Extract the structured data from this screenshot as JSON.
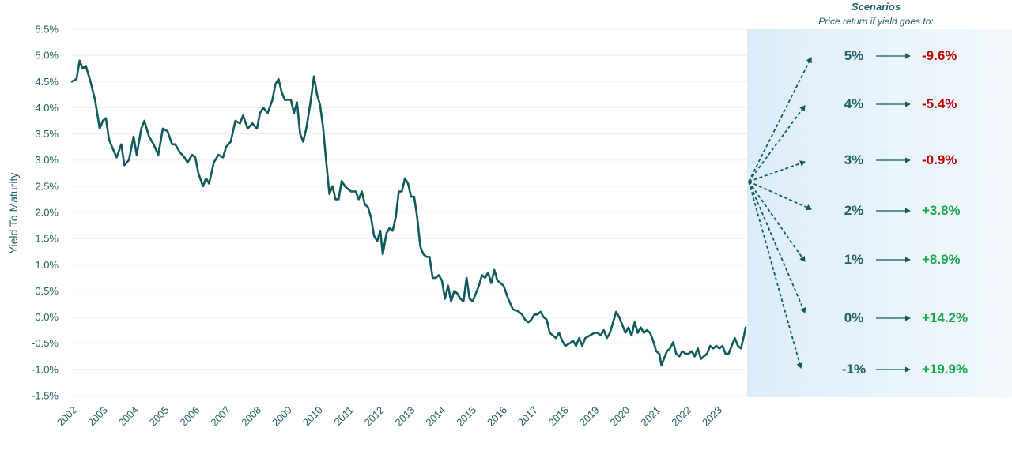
{
  "chart_data": {
    "type": "line",
    "title": "",
    "xlabel": "",
    "ylabel": "Yield To Maturity",
    "ylim": [
      -1.5,
      5.5
    ],
    "xlim": [
      2002,
      2023.9
    ],
    "y_ticks": [
      "5.5%",
      "5.0%",
      "4.5%",
      "4.0%",
      "3.5%",
      "3.0%",
      "2.5%",
      "2.0%",
      "1.5%",
      "1.0%",
      "0.5%",
      "0.0%",
      "-0.5%",
      "-1.0%",
      "-1.5%"
    ],
    "x_ticks": [
      "2002",
      "2003",
      "2004",
      "2005",
      "2006",
      "2007",
      "2008",
      "2009",
      "2010",
      "2011",
      "2012",
      "2013",
      "2014",
      "2015",
      "2016",
      "2017",
      "2018",
      "2019",
      "2020",
      "2021",
      "2022",
      "2023"
    ],
    "grid": true,
    "series": [
      {
        "color": "#0f5a5c",
        "points": [
          [
            2002.0,
            4.5
          ],
          [
            2002.15,
            4.55
          ],
          [
            2002.25,
            4.9
          ],
          [
            2002.35,
            4.75
          ],
          [
            2002.45,
            4.8
          ],
          [
            2002.6,
            4.5
          ],
          [
            2002.75,
            4.15
          ],
          [
            2002.9,
            3.6
          ],
          [
            2003.0,
            3.75
          ],
          [
            2003.1,
            3.8
          ],
          [
            2003.2,
            3.4
          ],
          [
            2003.3,
            3.25
          ],
          [
            2003.45,
            3.05
          ],
          [
            2003.6,
            3.3
          ],
          [
            2003.7,
            2.9
          ],
          [
            2003.85,
            3.0
          ],
          [
            2004.0,
            3.45
          ],
          [
            2004.1,
            3.1
          ],
          [
            2004.25,
            3.6
          ],
          [
            2004.35,
            3.75
          ],
          [
            2004.5,
            3.45
          ],
          [
            2004.65,
            3.3
          ],
          [
            2004.8,
            3.1
          ],
          [
            2004.95,
            3.6
          ],
          [
            2005.1,
            3.55
          ],
          [
            2005.25,
            3.3
          ],
          [
            2005.35,
            3.3
          ],
          [
            2005.5,
            3.15
          ],
          [
            2005.65,
            3.05
          ],
          [
            2005.75,
            2.95
          ],
          [
            2005.9,
            3.1
          ],
          [
            2006.0,
            3.05
          ],
          [
            2006.1,
            2.75
          ],
          [
            2006.25,
            2.5
          ],
          [
            2006.35,
            2.65
          ],
          [
            2006.45,
            2.55
          ],
          [
            2006.6,
            2.95
          ],
          [
            2006.75,
            3.1
          ],
          [
            2006.9,
            3.05
          ],
          [
            2007.0,
            3.25
          ],
          [
            2007.15,
            3.35
          ],
          [
            2007.3,
            3.75
          ],
          [
            2007.45,
            3.7
          ],
          [
            2007.55,
            3.85
          ],
          [
            2007.7,
            3.6
          ],
          [
            2007.85,
            3.7
          ],
          [
            2008.0,
            3.6
          ],
          [
            2008.1,
            3.9
          ],
          [
            2008.2,
            4.0
          ],
          [
            2008.35,
            3.9
          ],
          [
            2008.5,
            4.15
          ],
          [
            2008.6,
            4.45
          ],
          [
            2008.7,
            4.55
          ],
          [
            2008.8,
            4.3
          ],
          [
            2008.9,
            4.15
          ],
          [
            2009.0,
            4.15
          ],
          [
            2009.1,
            4.15
          ],
          [
            2009.2,
            3.9
          ],
          [
            2009.3,
            4.1
          ],
          [
            2009.4,
            3.5
          ],
          [
            2009.5,
            3.35
          ],
          [
            2009.6,
            3.6
          ],
          [
            2009.75,
            4.15
          ],
          [
            2009.85,
            4.6
          ],
          [
            2009.95,
            4.25
          ],
          [
            2010.05,
            4.05
          ],
          [
            2010.15,
            3.6
          ],
          [
            2010.25,
            2.95
          ],
          [
            2010.35,
            2.35
          ],
          [
            2010.45,
            2.5
          ],
          [
            2010.55,
            2.25
          ],
          [
            2010.65,
            2.25
          ],
          [
            2010.75,
            2.6
          ],
          [
            2010.85,
            2.5
          ],
          [
            2010.95,
            2.45
          ],
          [
            2011.05,
            2.4
          ],
          [
            2011.2,
            2.4
          ],
          [
            2011.3,
            2.25
          ],
          [
            2011.4,
            2.4
          ],
          [
            2011.5,
            2.15
          ],
          [
            2011.6,
            2.1
          ],
          [
            2011.7,
            1.9
          ],
          [
            2011.8,
            1.55
          ],
          [
            2011.9,
            1.45
          ],
          [
            2012.0,
            1.65
          ],
          [
            2012.08,
            1.2
          ],
          [
            2012.2,
            1.6
          ],
          [
            2012.3,
            1.7
          ],
          [
            2012.4,
            1.65
          ],
          [
            2012.5,
            1.9
          ],
          [
            2012.6,
            2.4
          ],
          [
            2012.7,
            2.4
          ],
          [
            2012.8,
            2.65
          ],
          [
            2012.9,
            2.55
          ],
          [
            2013.0,
            2.3
          ],
          [
            2013.1,
            2.3
          ],
          [
            2013.2,
            1.9
          ],
          [
            2013.3,
            1.35
          ],
          [
            2013.4,
            1.2
          ],
          [
            2013.5,
            1.15
          ],
          [
            2013.6,
            1.15
          ],
          [
            2013.7,
            0.75
          ],
          [
            2013.8,
            0.75
          ],
          [
            2013.9,
            0.8
          ],
          [
            2014.0,
            0.7
          ],
          [
            2014.1,
            0.35
          ],
          [
            2014.2,
            0.6
          ],
          [
            2014.3,
            0.3
          ],
          [
            2014.4,
            0.5
          ],
          [
            2014.5,
            0.45
          ],
          [
            2014.6,
            0.35
          ],
          [
            2014.7,
            0.3
          ],
          [
            2014.8,
            0.75
          ],
          [
            2014.9,
            0.35
          ],
          [
            2015.0,
            0.3
          ],
          [
            2015.1,
            0.45
          ],
          [
            2015.2,
            0.6
          ],
          [
            2015.3,
            0.8
          ],
          [
            2015.4,
            0.75
          ],
          [
            2015.5,
            0.85
          ],
          [
            2015.6,
            0.65
          ],
          [
            2015.7,
            0.9
          ],
          [
            2015.8,
            0.7
          ],
          [
            2015.9,
            0.65
          ],
          [
            2016.0,
            0.6
          ],
          [
            2016.15,
            0.35
          ],
          [
            2016.3,
            0.15
          ],
          [
            2016.45,
            0.12
          ],
          [
            2016.6,
            0.05
          ],
          [
            2016.7,
            -0.05
          ],
          [
            2016.8,
            -0.1
          ],
          [
            2016.9,
            -0.05
          ],
          [
            2017.0,
            0.05
          ],
          [
            2017.1,
            0.05
          ],
          [
            2017.2,
            0.1
          ],
          [
            2017.3,
            0.0
          ],
          [
            2017.4,
            -0.05
          ],
          [
            2017.5,
            -0.3
          ],
          [
            2017.6,
            -0.35
          ],
          [
            2017.7,
            -0.4
          ],
          [
            2017.8,
            -0.3
          ],
          [
            2017.9,
            -0.45
          ],
          [
            2018.0,
            -0.55
          ],
          [
            2018.15,
            -0.5
          ],
          [
            2018.25,
            -0.45
          ],
          [
            2018.35,
            -0.55
          ],
          [
            2018.45,
            -0.4
          ],
          [
            2018.55,
            -0.55
          ],
          [
            2018.65,
            -0.4
          ],
          [
            2018.8,
            -0.35
          ],
          [
            2018.95,
            -0.3
          ],
          [
            2019.05,
            -0.3
          ],
          [
            2019.15,
            -0.35
          ],
          [
            2019.25,
            -0.25
          ],
          [
            2019.35,
            -0.4
          ],
          [
            2019.45,
            -0.3
          ],
          [
            2019.55,
            -0.1
          ],
          [
            2019.65,
            0.1
          ],
          [
            2019.75,
            0.0
          ],
          [
            2019.85,
            -0.15
          ],
          [
            2019.95,
            -0.3
          ],
          [
            2020.05,
            -0.2
          ],
          [
            2020.15,
            -0.35
          ],
          [
            2020.25,
            -0.1
          ],
          [
            2020.35,
            -0.3
          ],
          [
            2020.45,
            -0.2
          ],
          [
            2020.55,
            -0.3
          ],
          [
            2020.65,
            -0.25
          ],
          [
            2020.75,
            -0.3
          ],
          [
            2020.85,
            -0.45
          ],
          [
            2020.95,
            -0.65
          ],
          [
            2021.05,
            -0.7
          ],
          [
            2021.12,
            -0.92
          ],
          [
            2021.2,
            -0.8
          ],
          [
            2021.3,
            -0.65
          ],
          [
            2021.4,
            -0.6
          ],
          [
            2021.5,
            -0.48
          ],
          [
            2021.6,
            -0.7
          ],
          [
            2021.7,
            -0.75
          ],
          [
            2021.8,
            -0.65
          ],
          [
            2021.9,
            -0.7
          ],
          [
            2022.0,
            -0.7
          ],
          [
            2022.1,
            -0.65
          ],
          [
            2022.2,
            -0.75
          ],
          [
            2022.3,
            -0.6
          ],
          [
            2022.4,
            -0.8
          ],
          [
            2022.5,
            -0.75
          ],
          [
            2022.6,
            -0.7
          ],
          [
            2022.7,
            -0.55
          ],
          [
            2022.8,
            -0.6
          ],
          [
            2022.9,
            -0.55
          ],
          [
            2023.0,
            -0.6
          ],
          [
            2023.1,
            -0.55
          ],
          [
            2023.2,
            -0.7
          ],
          [
            2023.3,
            -0.7
          ],
          [
            2023.4,
            -0.55
          ],
          [
            2023.5,
            -0.4
          ],
          [
            2023.6,
            -0.55
          ],
          [
            2023.7,
            -0.6
          ],
          [
            2023.8,
            -0.35
          ],
          [
            2023.85,
            -0.2
          ]
        ]
      }
    ],
    "scenarios": {
      "title": "Scenarios",
      "subtitle": "Price return if yield goes to:",
      "rows": [
        {
          "yield": "5%",
          "return": "-9.6%",
          "yield_value": 5,
          "color": "#c00000"
        },
        {
          "yield": "4%",
          "return": "-5.4%",
          "yield_value": 4,
          "color": "#c00000"
        },
        {
          "yield": "3%",
          "return": "-0.9%",
          "yield_value": 3,
          "color": "#c00000"
        },
        {
          "yield": "2%",
          "return": "+3.8%",
          "yield_value": 2,
          "color": "#1aa84b"
        },
        {
          "yield": "1%",
          "return": "+8.9%",
          "yield_value": 1,
          "color": "#1aa84b"
        },
        {
          "yield": "0%",
          "return": "+14.2%",
          "yield_value": 0,
          "color": "#1aa84b"
        },
        {
          "yield": "-1%",
          "return": "+19.9%",
          "yield_value": -1,
          "color": "#1aa84b"
        }
      ]
    }
  }
}
